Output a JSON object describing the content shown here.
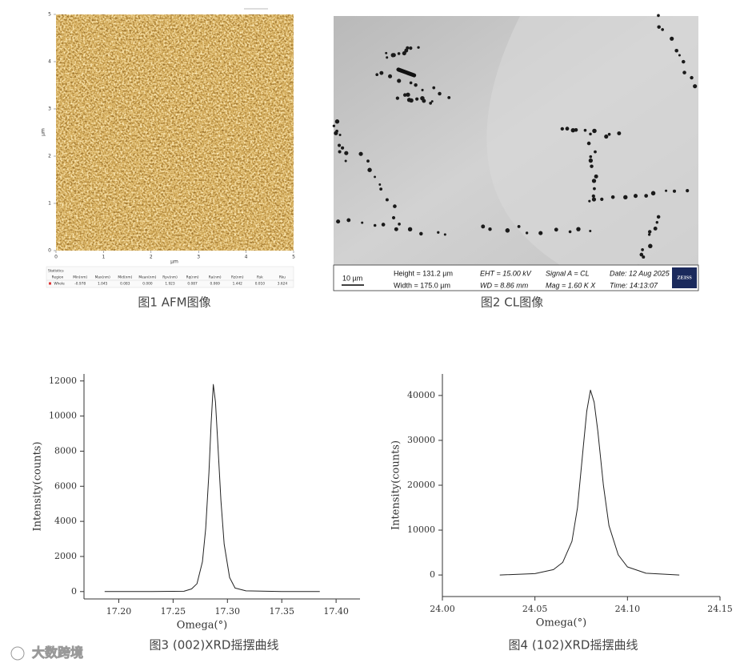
{
  "figure1": {
    "caption": "图1 AFM图像",
    "xticks": [
      0,
      1,
      2,
      3,
      4,
      5
    ],
    "yticks": [
      0,
      1,
      2,
      3,
      4,
      5
    ],
    "xlabel": "μm",
    "ylabel": "μm",
    "table_title": "Statistics",
    "table_header": [
      "Region",
      "Min(nm)",
      "Max(nm)",
      "Mid(nm)",
      "Mean(nm)",
      "Rpv(nm)",
      "Rq(nm)",
      "Ra(nm)",
      "Rz(nm)",
      "Rsk",
      "Rku"
    ],
    "table_row": [
      "Whole",
      "-0.978",
      "1.045",
      "0.083",
      "0.000",
      "1.923",
      "0.087",
      "0.069",
      "1.442",
      "0.010",
      "3.624"
    ]
  },
  "figure2": {
    "caption": "图2 CL图像",
    "scale": "10 µm",
    "height": "Height = 131.2 µm",
    "width": "Width = 175.0 µm",
    "eht": "EHT = 15.00 kV",
    "wd": "WD = 8.86 mm",
    "signal": "Signal A = CL",
    "mag": "Mag = 1.60 K X",
    "date": "Date: 12 Aug 2025",
    "time": "Time: 14:13:07",
    "logo": "ZEISS"
  },
  "watermark": "大数跨境",
  "chart_data": [
    {
      "type": "line",
      "caption": "图3 (002)XRD摇摆曲线",
      "xlabel": "Omega(°)",
      "ylabel": "Intensity(counts)",
      "color": "#222222",
      "x": [
        17.187,
        17.23,
        17.26,
        17.267,
        17.272,
        17.277,
        17.28,
        17.283,
        17.285,
        17.287,
        17.289,
        17.291,
        17.294,
        17.297,
        17.302,
        17.307,
        17.317,
        17.35,
        17.385
      ],
      "values": [
        0,
        0,
        20,
        150,
        450,
        1700,
        3600,
        6800,
        9600,
        11800,
        10800,
        8600,
        5200,
        2700,
        800,
        200,
        40,
        0,
        0
      ],
      "xlim": [
        17.168,
        17.422
      ],
      "ylim": [
        -420,
        12400
      ],
      "xticks": [
        {
          "value": 17.2,
          "label": "17.20"
        },
        17.25,
        {
          "value": 17.3,
          "label": "17.30"
        },
        17.35,
        {
          "value": 17.4,
          "label": "17.40"
        }
      ],
      "yticks": [
        0,
        2000,
        4000,
        6000,
        8000,
        10000,
        12000
      ]
    },
    {
      "type": "line",
      "caption": "图4 (102)XRD摇摆曲线",
      "xlabel": "Omega(°)",
      "ylabel": "Intensity(counts)",
      "color": "#222222",
      "x": [
        24.031,
        24.05,
        24.06,
        24.065,
        24.07,
        24.073,
        24.076,
        24.078,
        24.08,
        24.082,
        24.084,
        24.087,
        24.09,
        24.095,
        24.1,
        24.11,
        24.128
      ],
      "values": [
        0,
        300,
        1200,
        2800,
        7500,
        15000,
        28000,
        36500,
        41200,
        38500,
        32000,
        20000,
        11000,
        4500,
        1800,
        400,
        0
      ],
      "xlim": [
        24.0,
        24.15
      ],
      "ylim": [
        -4800,
        44800
      ],
      "xticks": [
        {
          "value": 24.0,
          "label": "24.00"
        },
        24.05,
        {
          "value": 24.1,
          "label": "24.10"
        },
        24.15
      ],
      "yticks": [
        0,
        10000,
        20000,
        30000,
        40000
      ]
    }
  ]
}
